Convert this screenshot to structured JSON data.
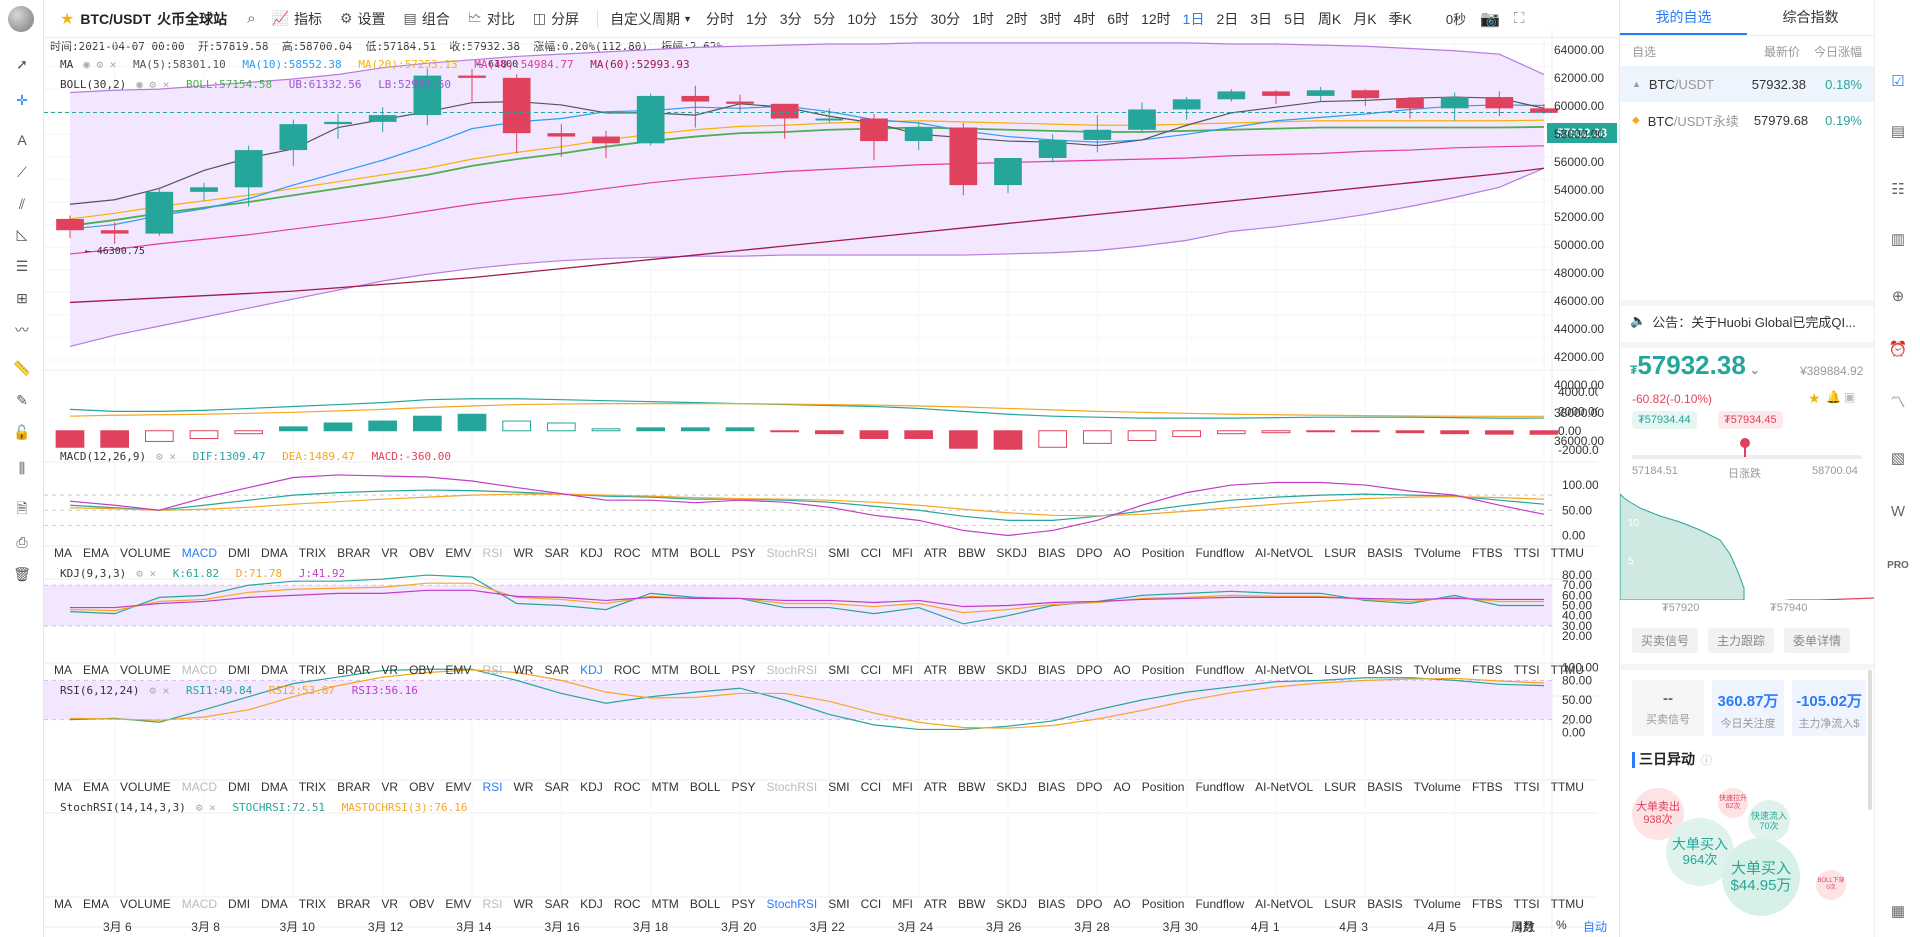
{
  "header": {
    "symbol": "BTC/USDT",
    "exchange": "火币全球站",
    "tools": [
      {
        "label": "指标",
        "icon": "indicator-icon"
      },
      {
        "label": "设置",
        "icon": "gear-icon"
      },
      {
        "label": "组合",
        "icon": "combo-icon"
      },
      {
        "label": "对比",
        "icon": "compare-icon"
      },
      {
        "label": "分屏",
        "icon": "split-screen-icon"
      }
    ],
    "custom_period": "自定义周期",
    "periods": [
      "分时",
      "1分",
      "3分",
      "5分",
      "10分",
      "15分",
      "30分",
      "1时",
      "2时",
      "3时",
      "4时",
      "6时",
      "12时",
      "1日",
      "2日",
      "3日",
      "5日",
      "周K",
      "月K",
      "季K"
    ],
    "active_period": "1日",
    "countdown": "0秒"
  },
  "info_row": {
    "time": "时间:2021-04-07 00:00",
    "open": "开:57819.58",
    "high": "高:58700.04",
    "low": "低:57184.51",
    "close": "收:57932.38",
    "change": "涨幅:0.20%(112.80)",
    "amplitude": "振幅:2.62%"
  },
  "ma_label": {
    "name": "MA",
    "ma5": "MA(5):58301.10",
    "ma10": "MA(10):58552.38",
    "ma20": "MA(20):57253.13",
    "ma40": "MA(40):54984.77",
    "ma60": "MA(60):52993.93"
  },
  "boll_label": {
    "name": "BOLL(30,2)",
    "boll": "BOLL:57154.58",
    "ub": "UB:61332.56",
    "lb": "LB:52976.60"
  },
  "annotations": {
    "high_mark": "61800",
    "low_mark": "46300.75"
  },
  "price_axis": [
    "64000.00",
    "62000.00",
    "60000.00",
    "58000.00",
    "56000.00",
    "54000.00",
    "52000.00",
    "50000.00",
    "48000.00",
    "46000.00",
    "44000.00",
    "42000.00",
    "40000.00",
    "38000.00",
    "36000.00"
  ],
  "current_price_tag": "57932.38",
  "macd": {
    "label": "MACD(12,26,9)",
    "dif": "DIF:1309.47",
    "dea": "DEA:1489.47",
    "macd": "MACD:-360.00",
    "axis": [
      "4000.00",
      "2000.00",
      "0.00",
      "-2000.00"
    ]
  },
  "kdj": {
    "label": "KDJ(9,3,3)",
    "k": "K:61.82",
    "d": "D:71.78",
    "j": "J:41.92",
    "axis": [
      "100.00",
      "50.00",
      "0.00"
    ]
  },
  "rsi": {
    "label": "RSI(6,12,24)",
    "rsi1": "RSI1:49.84",
    "rsi2": "RSI2:53.87",
    "rsi3": "RSI3:56.16",
    "axis": [
      "80.00",
      "70.00",
      "60.00",
      "50.00",
      "40.00",
      "30.00",
      "20.00"
    ]
  },
  "stochrsi": {
    "label": "StochRSI(14,14,3,3)",
    "stoch": "STOCHRSI:72.51",
    "ma": "MASTOCHRSI(3):76.16",
    "axis": [
      "100.00",
      "80.00",
      "50.00",
      "20.00",
      "0.00"
    ]
  },
  "indicator_tabs": [
    "MA",
    "EMA",
    "VOLUME",
    "MACD",
    "DMI",
    "DMA",
    "TRIX",
    "BRAR",
    "VR",
    "OBV",
    "EMV",
    "RSI",
    "WR",
    "SAR",
    "KDJ",
    "ROC",
    "MTM",
    "BOLL",
    "PSY",
    "StochRSI",
    "SMI",
    "CCI",
    "MFI",
    "ATR",
    "BBW",
    "SKDJ",
    "BIAS",
    "DPO",
    "AO",
    "Position",
    "Fundflow",
    "AI-NetVOL",
    "LSUR",
    "BASIS",
    "TVolume",
    "FTBS",
    "TTSI",
    "TTMU"
  ],
  "x_labels": [
    "3月 6",
    "3月 8",
    "3月 10",
    "3月 12",
    "3月 14",
    "3月 16",
    "3月 18",
    "3月 20",
    "3月 22",
    "3月 24",
    "3月 26",
    "3月 28",
    "3月 30",
    "4月 1",
    "4月 3",
    "4月 5",
    "4月"
  ],
  "bottom_controls": {
    "weekday": "周数",
    "percent": "%",
    "auto": "自动"
  },
  "colors": {
    "up": "#26a69a",
    "down": "#e0425d",
    "accent": "#2a7cf6",
    "boll_fill": "#f3e6ff"
  },
  "chart_data": {
    "type": "candlestick",
    "title": "",
    "xlabel": "",
    "ylabel": "",
    "ylim": [
      36000,
      64000
    ],
    "dates": [
      "3-5",
      "3-6",
      "3-7",
      "3-8",
      "3-9",
      "3-10",
      "3-11",
      "3-12",
      "3-13",
      "3-14",
      "3-15",
      "3-16",
      "3-17",
      "3-18",
      "3-19",
      "3-20",
      "3-21",
      "3-22",
      "3-23",
      "3-24",
      "3-25",
      "3-26",
      "3-27",
      "3-28",
      "3-29",
      "3-30",
      "3-31",
      "4-1",
      "4-2",
      "4-3",
      "4-4",
      "4-5",
      "4-6",
      "4-7"
    ],
    "candles": [
      [
        48500,
        48800,
        46800,
        47500
      ],
      [
        47500,
        48200,
        46300,
        47200
      ],
      [
        47200,
        51300,
        47000,
        50900
      ],
      [
        50900,
        51700,
        50100,
        51300
      ],
      [
        51300,
        55000,
        49600,
        54600
      ],
      [
        54600,
        57300,
        53200,
        56900
      ],
      [
        56900,
        57800,
        55600,
        57100
      ],
      [
        57100,
        58400,
        56200,
        57700
      ],
      [
        57700,
        61800,
        56800,
        61200
      ],
      [
        61200,
        61800,
        58900,
        61000
      ],
      [
        61000,
        61300,
        54300,
        56100
      ],
      [
        56100,
        56900,
        54000,
        55800
      ],
      [
        55800,
        56300,
        53900,
        55200
      ],
      [
        55200,
        59600,
        55000,
        59400
      ],
      [
        59400,
        60300,
        56600,
        58900
      ],
      [
        58900,
        59500,
        57900,
        58700
      ],
      [
        58700,
        58700,
        55600,
        57400
      ],
      [
        57400,
        58300,
        57000,
        57400
      ],
      [
        57400,
        57800,
        53700,
        55400
      ],
      [
        55400,
        57100,
        54600,
        56600
      ],
      [
        56600,
        57000,
        50600,
        51500
      ],
      [
        51500,
        53900,
        50800,
        53900
      ],
      [
        53900,
        56000,
        53500,
        55500
      ],
      [
        55500,
        57700,
        54400,
        56400
      ],
      [
        56400,
        58800,
        56100,
        58200
      ],
      [
        58200,
        59300,
        57300,
        59100
      ],
      [
        59100,
        60000,
        58900,
        59800
      ],
      [
        59800,
        59900,
        58700,
        59400
      ],
      [
        59400,
        60200,
        58900,
        59900
      ],
      [
        59900,
        60000,
        58500,
        59200
      ],
      [
        59200,
        59300,
        57400,
        58300
      ],
      [
        58300,
        59700,
        57200,
        59300
      ],
      [
        59300,
        59800,
        57600,
        58300
      ],
      [
        58300,
        58700,
        57800,
        57900
      ]
    ],
    "ma5": [
      49800,
      50200,
      51200,
      52800,
      53900,
      54700,
      56600,
      57300,
      58000,
      58800,
      58900,
      58600,
      57900,
      57900,
      57700,
      58700,
      58400,
      57600,
      57000,
      56000,
      55700,
      55400,
      55300,
      55000,
      55500,
      56800,
      57900,
      58400,
      58900,
      59000,
      59200,
      59300,
      59200,
      58300
    ],
    "ma10": [
      47600,
      48000,
      48800,
      49400,
      50300,
      51500,
      52600,
      53700,
      55000,
      56500,
      57100,
      57400,
      58000,
      58100,
      58400,
      58300,
      58500,
      58000,
      57300,
      57000,
      56300,
      55800,
      55500,
      55300,
      55500,
      56000,
      56600,
      57200,
      57500,
      57800,
      58200,
      58500,
      58600,
      58550
    ],
    "ma20": [
      48500,
      49000,
      49600,
      50100,
      50600,
      51200,
      51800,
      52400,
      53000,
      53800,
      54400,
      54900,
      55500,
      56000,
      56400,
      56700,
      56800,
      57000,
      57100,
      57200,
      57100,
      57000,
      56900,
      56800,
      56800,
      56900,
      57000,
      57100,
      57200,
      57200,
      57200,
      57200,
      57200,
      57250
    ],
    "ma40": [
      45400,
      45800,
      46300,
      46700,
      47100,
      47600,
      48100,
      48600,
      49200,
      49800,
      50300,
      50700,
      51200,
      51700,
      52100,
      52400,
      52700,
      52900,
      53100,
      53300,
      53400,
      53500,
      53600,
      53700,
      53800,
      53900,
      54100,
      54200,
      54300,
      54500,
      54600,
      54800,
      54900,
      54980
    ],
    "ma60": [
      41100,
      41300,
      41500,
      41700,
      41900,
      42100,
      42400,
      42700,
      43000,
      43300,
      43700,
      44100,
      44500,
      44900,
      45300,
      45700,
      46100,
      46500,
      46900,
      47300,
      47700,
      48100,
      48500,
      48900,
      49300,
      49700,
      50100,
      50500,
      50900,
      51300,
      51700,
      52100,
      52500,
      52990
    ],
    "boll_ub": [
      59700,
      59900,
      60000,
      60300,
      60600,
      60900,
      61300,
      61900,
      62300,
      62600,
      62900,
      63100,
      63300,
      63500,
      63700,
      63800,
      63900,
      64000,
      64000,
      64100,
      64100,
      64100,
      64100,
      64100,
      64100,
      64100,
      64000,
      64000,
      63900,
      63800,
      63600,
      63400,
      63100,
      61300
    ],
    "boll_lb": [
      37200,
      38200,
      39000,
      39800,
      40600,
      41400,
      42200,
      43000,
      43600,
      44100,
      44500,
      44800,
      45000,
      45100,
      45200,
      45200,
      45300,
      45300,
      45300,
      45300,
      45300,
      45400,
      45500,
      45700,
      46100,
      46600,
      47400,
      47800,
      48300,
      48900,
      49600,
      50400,
      51300,
      53000
    ],
    "macd_dif": [
      2200,
      2000,
      2000,
      2100,
      2300,
      2500,
      2700,
      2900,
      3200,
      3300,
      3300,
      3200,
      3100,
      3000,
      2900,
      2800,
      2700,
      2600,
      2500,
      2300,
      2000,
      1700,
      1500,
      1400,
      1300,
      1300,
      1300,
      1350,
      1400,
      1400,
      1400,
      1350,
      1300,
      1310
    ],
    "macd_dea": [
      1500,
      1600,
      1650,
      1700,
      1800,
      1900,
      2050,
      2200,
      2400,
      2550,
      2700,
      2750,
      2800,
      2800,
      2800,
      2800,
      2750,
      2700,
      2650,
      2550,
      2450,
      2300,
      2150,
      2000,
      1900,
      1800,
      1700,
      1650,
      1600,
      1560,
      1530,
      1500,
      1490,
      1490
    ],
    "macd_hist": [
      -1700,
      -1700,
      -1100,
      -800,
      -300,
      400,
      800,
      1000,
      1500,
      1700,
      1000,
      800,
      200,
      300,
      300,
      300,
      -100,
      -300,
      -800,
      -800,
      -1800,
      -1900,
      -1700,
      -1300,
      -1000,
      -600,
      -300,
      -200,
      -100,
      -100,
      -200,
      -300,
      -350,
      -360
    ],
    "kdj_k": [
      60,
      55,
      50,
      60,
      70,
      80,
      85,
      88,
      90,
      89,
      86,
      82,
      78,
      76,
      72,
      72,
      70,
      66,
      58,
      50,
      38,
      30,
      30,
      38,
      48,
      60,
      70,
      76,
      80,
      82,
      80,
      78,
      70,
      62
    ],
    "kdj_d": [
      55,
      53,
      50,
      52,
      56,
      62,
      67,
      72,
      76,
      80,
      82,
      82,
      80,
      78,
      75,
      73,
      72,
      70,
      66,
      60,
      52,
      45,
      40,
      39,
      42,
      48,
      55,
      62,
      68,
      73,
      76,
      77,
      75,
      72
    ],
    "kdj_j": [
      68,
      60,
      50,
      75,
      95,
      115,
      120,
      118,
      116,
      108,
      95,
      83,
      70,
      70,
      65,
      70,
      66,
      56,
      40,
      30,
      10,
      0,
      10,
      30,
      60,
      85,
      100,
      105,
      105,
      100,
      88,
      80,
      60,
      42
    ],
    "rsi1": [
      44,
      42,
      58,
      60,
      70,
      74,
      74,
      76,
      80,
      78,
      52,
      50,
      46,
      62,
      58,
      57,
      48,
      48,
      42,
      48,
      32,
      40,
      50,
      54,
      60,
      62,
      64,
      62,
      62,
      55,
      52,
      60,
      50,
      50
    ],
    "rsi2": [
      46,
      45,
      54,
      56,
      63,
      66,
      67,
      68,
      72,
      72,
      58,
      56,
      52,
      59,
      57,
      57,
      52,
      52,
      49,
      52,
      43,
      46,
      51,
      53,
      57,
      58,
      60,
      59,
      59,
      56,
      54,
      58,
      54,
      54
    ],
    "rsi3": [
      48,
      48,
      52,
      54,
      58,
      60,
      62,
      62,
      65,
      65,
      59,
      58,
      55,
      58,
      57,
      57,
      55,
      55,
      53,
      55,
      49,
      50,
      53,
      54,
      56,
      57,
      58,
      58,
      58,
      57,
      56,
      57,
      56,
      56
    ],
    "stochrsi": [
      20,
      22,
      16,
      35,
      55,
      75,
      85,
      95,
      97,
      97,
      80,
      60,
      45,
      55,
      62,
      68,
      50,
      28,
      12,
      5,
      5,
      10,
      18,
      35,
      50,
      62,
      70,
      78,
      80,
      84,
      84,
      80,
      74,
      72
    ],
    "stochrsi_ma": [
      22,
      21,
      19,
      24,
      35,
      55,
      72,
      85,
      92,
      96,
      92,
      80,
      62,
      53,
      54,
      60,
      60,
      48,
      30,
      16,
      8,
      7,
      11,
      21,
      34,
      49,
      61,
      70,
      76,
      80,
      82,
      83,
      79,
      76
    ]
  },
  "right_panel": {
    "tabs": [
      "我的自选",
      "综合指数"
    ],
    "list_header": {
      "col1": "自选",
      "col2": "最新价",
      "col3": "今日涨幅"
    },
    "rows": [
      {
        "name": "BTC",
        "pair": "/USDT",
        "price": "57932.38",
        "change": "0.18%"
      },
      {
        "name": "BTC",
        "pair": "/USDT永续",
        "price": "57979.68",
        "change": "0.19%"
      }
    ],
    "notice": "公告：关于Huobi Global已完成QI...",
    "big_price": "57932.38",
    "big_price_prefix": "₮",
    "cny": "¥389884.92",
    "delta": "-60.82(-0.10%)",
    "bid_tag": "₮57934.44",
    "ask_tag": "₮57934.45",
    "low": "57184.51",
    "high": "58700.04",
    "range_label": "日涨跌",
    "mini_y": [
      "10",
      "5"
    ],
    "mini_x": [
      "₮57920",
      "₮57940"
    ],
    "signal_buttons": [
      "买卖信号",
      "主力跟踪",
      "委单详情"
    ],
    "stats": [
      {
        "value": "--",
        "label": "买卖信号"
      },
      {
        "value": "360.87万",
        "label": "今日关注度"
      },
      {
        "value": "-105.02万",
        "label": "主力净流入$"
      }
    ],
    "section_title": "三日异动",
    "bubbles": [
      {
        "title": "大单卖出",
        "sub": "938次"
      },
      {
        "title": "快速拉升",
        "sub": "62次"
      },
      {
        "title": "快速流入",
        "sub": "70次"
      },
      {
        "title": "大单买入",
        "sub": "964次"
      },
      {
        "title": "大单买入",
        "sub": "$44.95万"
      },
      {
        "title": "BOLL下穿",
        "sub": "0次"
      }
    ]
  }
}
